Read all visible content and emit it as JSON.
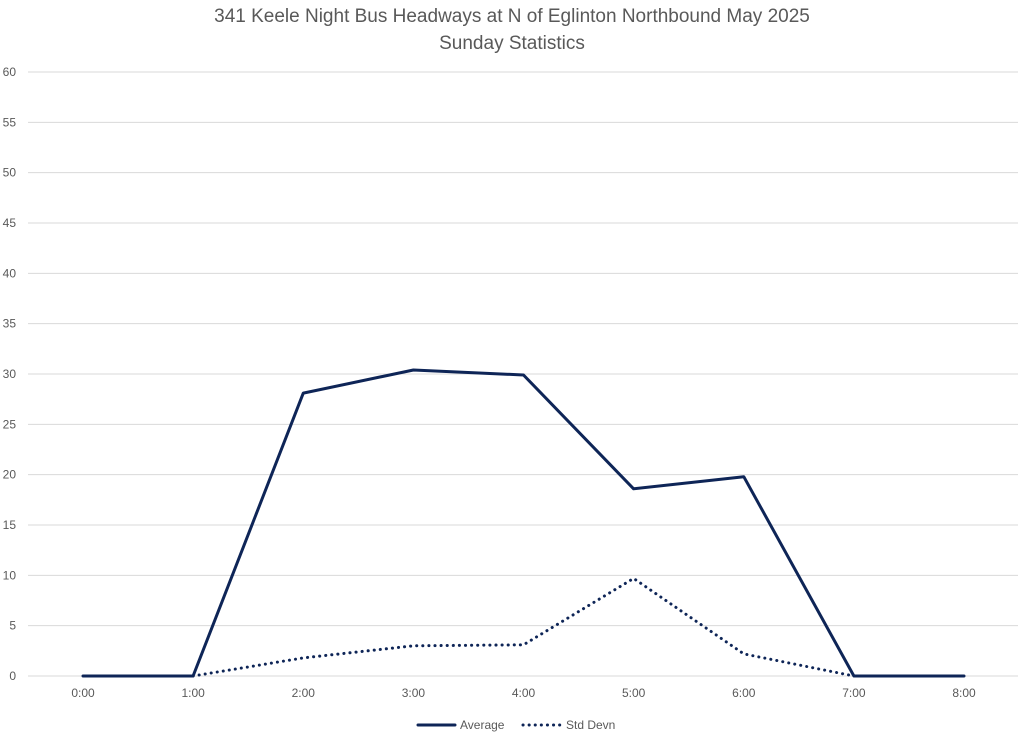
{
  "chart_data": {
    "type": "line",
    "title": "341 Keele Night Bus Headways at N of Eglinton Northbound May 2025",
    "subtitle": "Sunday Statistics",
    "categories": [
      "0:00",
      "1:00",
      "2:00",
      "3:00",
      "4:00",
      "5:00",
      "6:00",
      "7:00",
      "8:00"
    ],
    "series": [
      {
        "name": "Average",
        "values": [
          0,
          0,
          28.1,
          30.4,
          29.9,
          18.6,
          19.8,
          0,
          0
        ],
        "color": "#0e2557",
        "style": "solid"
      },
      {
        "name": "Std Devn",
        "values": [
          null,
          0,
          1.8,
          3.0,
          3.1,
          9.7,
          2.2,
          0,
          null
        ],
        "color": "#0e2557",
        "style": "dotted"
      }
    ],
    "ylim": [
      0,
      60
    ],
    "yticks": [
      0,
      5,
      10,
      15,
      20,
      25,
      30,
      35,
      40,
      45,
      50,
      55,
      60
    ],
    "grid": true,
    "legend": "bottom"
  }
}
